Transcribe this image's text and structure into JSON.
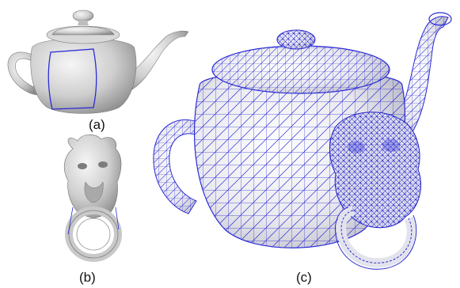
{
  "captions": {
    "a": "(a)",
    "b": "(b)",
    "c": "(c)"
  },
  "colors": {
    "mesh": "#2b2bd8",
    "surface": "#d4d4d4",
    "surface_light": "#f2f2f2",
    "surface_dark": "#8c8c8c",
    "background": "#ffffff"
  },
  "panels": [
    {
      "id": "a",
      "content": "shaded-teapot-with-patch"
    },
    {
      "id": "b",
      "content": "shaded-lion-head-knocker"
    },
    {
      "id": "c",
      "content": "wireframe-teapot-with-lion-head"
    }
  ]
}
